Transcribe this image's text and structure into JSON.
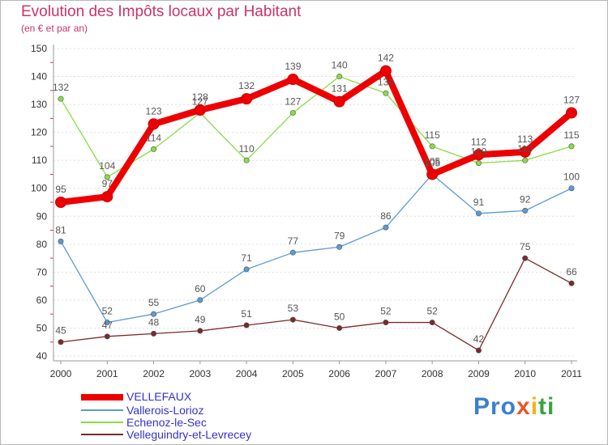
{
  "title": "Evolution des Impôts locaux par Habitant",
  "subtitle": "(en € et par an)",
  "logo": "Proxiti",
  "colors": {
    "title": "#cc3366",
    "legend_text": "#3333cc",
    "axis": "#999999",
    "grid": "#dddddd"
  },
  "chart_data": {
    "type": "line",
    "title": "Evolution des Impôts locaux par Habitant",
    "subtitle": "(en € et par an)",
    "xlabel": "",
    "ylabel": "",
    "x": [
      "2000",
      "2001",
      "2002",
      "2003",
      "2004",
      "2005",
      "2006",
      "2007",
      "2008",
      "2009",
      "2010",
      "2011"
    ],
    "ylim": [
      40,
      150
    ],
    "yticks": [
      40,
      50,
      60,
      70,
      80,
      90,
      100,
      110,
      120,
      130,
      140,
      150
    ],
    "grid": true,
    "legend_position": "bottom-left",
    "series": [
      {
        "name": "VELLEFAUX",
        "color": "#ee0000",
        "values": [
          95,
          97,
          123,
          128,
          132,
          139,
          131,
          142,
          105,
          112,
          113,
          127
        ]
      },
      {
        "name": "Vallerois-Lorioz",
        "color": "#5b9bd5",
        "values": [
          81,
          52,
          55,
          60,
          71,
          77,
          79,
          86,
          105,
          91,
          92,
          100
        ]
      },
      {
        "name": "Echenoz-le-Sec",
        "color": "#88dd44",
        "values": [
          132,
          104,
          114,
          127,
          110,
          127,
          140,
          134,
          115,
          109,
          110,
          115
        ]
      },
      {
        "name": "Velleguindry-et-Levrecey",
        "color": "#7a2a2a",
        "values": [
          45,
          47,
          48,
          49,
          51,
          53,
          50,
          52,
          52,
          42,
          75,
          66
        ]
      }
    ]
  }
}
